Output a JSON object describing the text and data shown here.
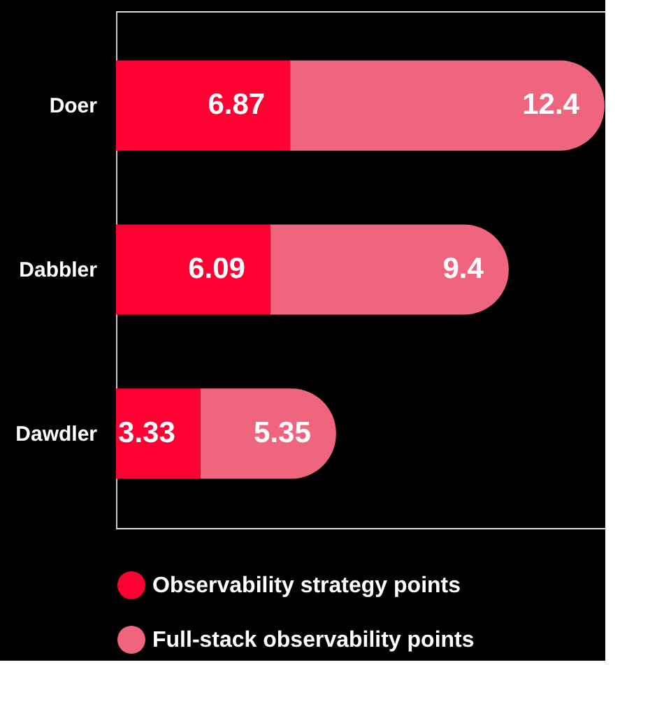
{
  "chart_data": {
    "type": "bar",
    "orientation": "horizontal",
    "stacked": true,
    "data_labels": true,
    "legend": "bottom",
    "grid": false,
    "tick_labels": "y",
    "xlim": [
      0,
      19.3
    ],
    "categories": [
      "Doer",
      "Dabbler",
      "Dawdler"
    ],
    "series": [
      {
        "name": "Observability strategy points",
        "color": "#ff0033",
        "values": [
          6.87,
          6.09,
          3.33
        ]
      },
      {
        "name": "Full-stack observability points",
        "color": "#f0657e",
        "values": [
          12.4,
          9.4,
          5.35
        ]
      }
    ]
  }
}
